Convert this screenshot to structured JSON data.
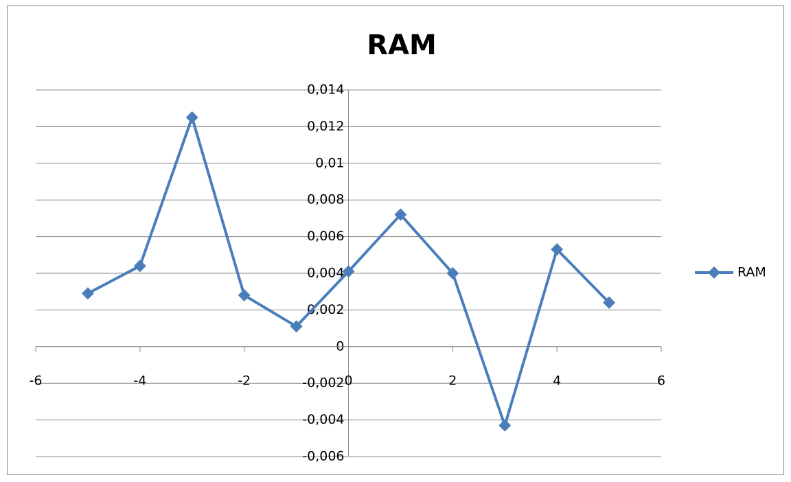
{
  "chart_data": {
    "type": "line",
    "title": "RAM",
    "x": [
      -5,
      -4,
      -3,
      -2,
      -1,
      0,
      1,
      2,
      3,
      4,
      5
    ],
    "series": [
      {
        "name": "RAM",
        "color": "#4a7ebb",
        "values": [
          0.0029,
          0.0044,
          0.0125,
          0.0028,
          0.0011,
          0.0041,
          0.0072,
          0.004,
          -0.0043,
          0.0053,
          0.0024
        ]
      }
    ],
    "xlim": [
      -6,
      6
    ],
    "xticks": [
      -6,
      -4,
      -2,
      0,
      2,
      4,
      6
    ],
    "ylim": [
      -0.006,
      0.014
    ],
    "yticks": [
      {
        "value": -0.006,
        "label": "-0,006"
      },
      {
        "value": -0.004,
        "label": "-0,004"
      },
      {
        "value": -0.002,
        "label": "-0,002"
      },
      0,
      {
        "value": 0.002,
        "label": "0,002"
      },
      {
        "value": 0.004,
        "label": "0,004"
      },
      {
        "value": 0.006,
        "label": "0,006"
      },
      {
        "value": 0.008,
        "label": "0,008"
      },
      {
        "value": 0.01,
        "label": "0,01"
      },
      {
        "value": 0.012,
        "label": "0,012"
      },
      {
        "value": 0.014,
        "label": "0,014"
      }
    ],
    "grid": true,
    "legend": "right"
  }
}
